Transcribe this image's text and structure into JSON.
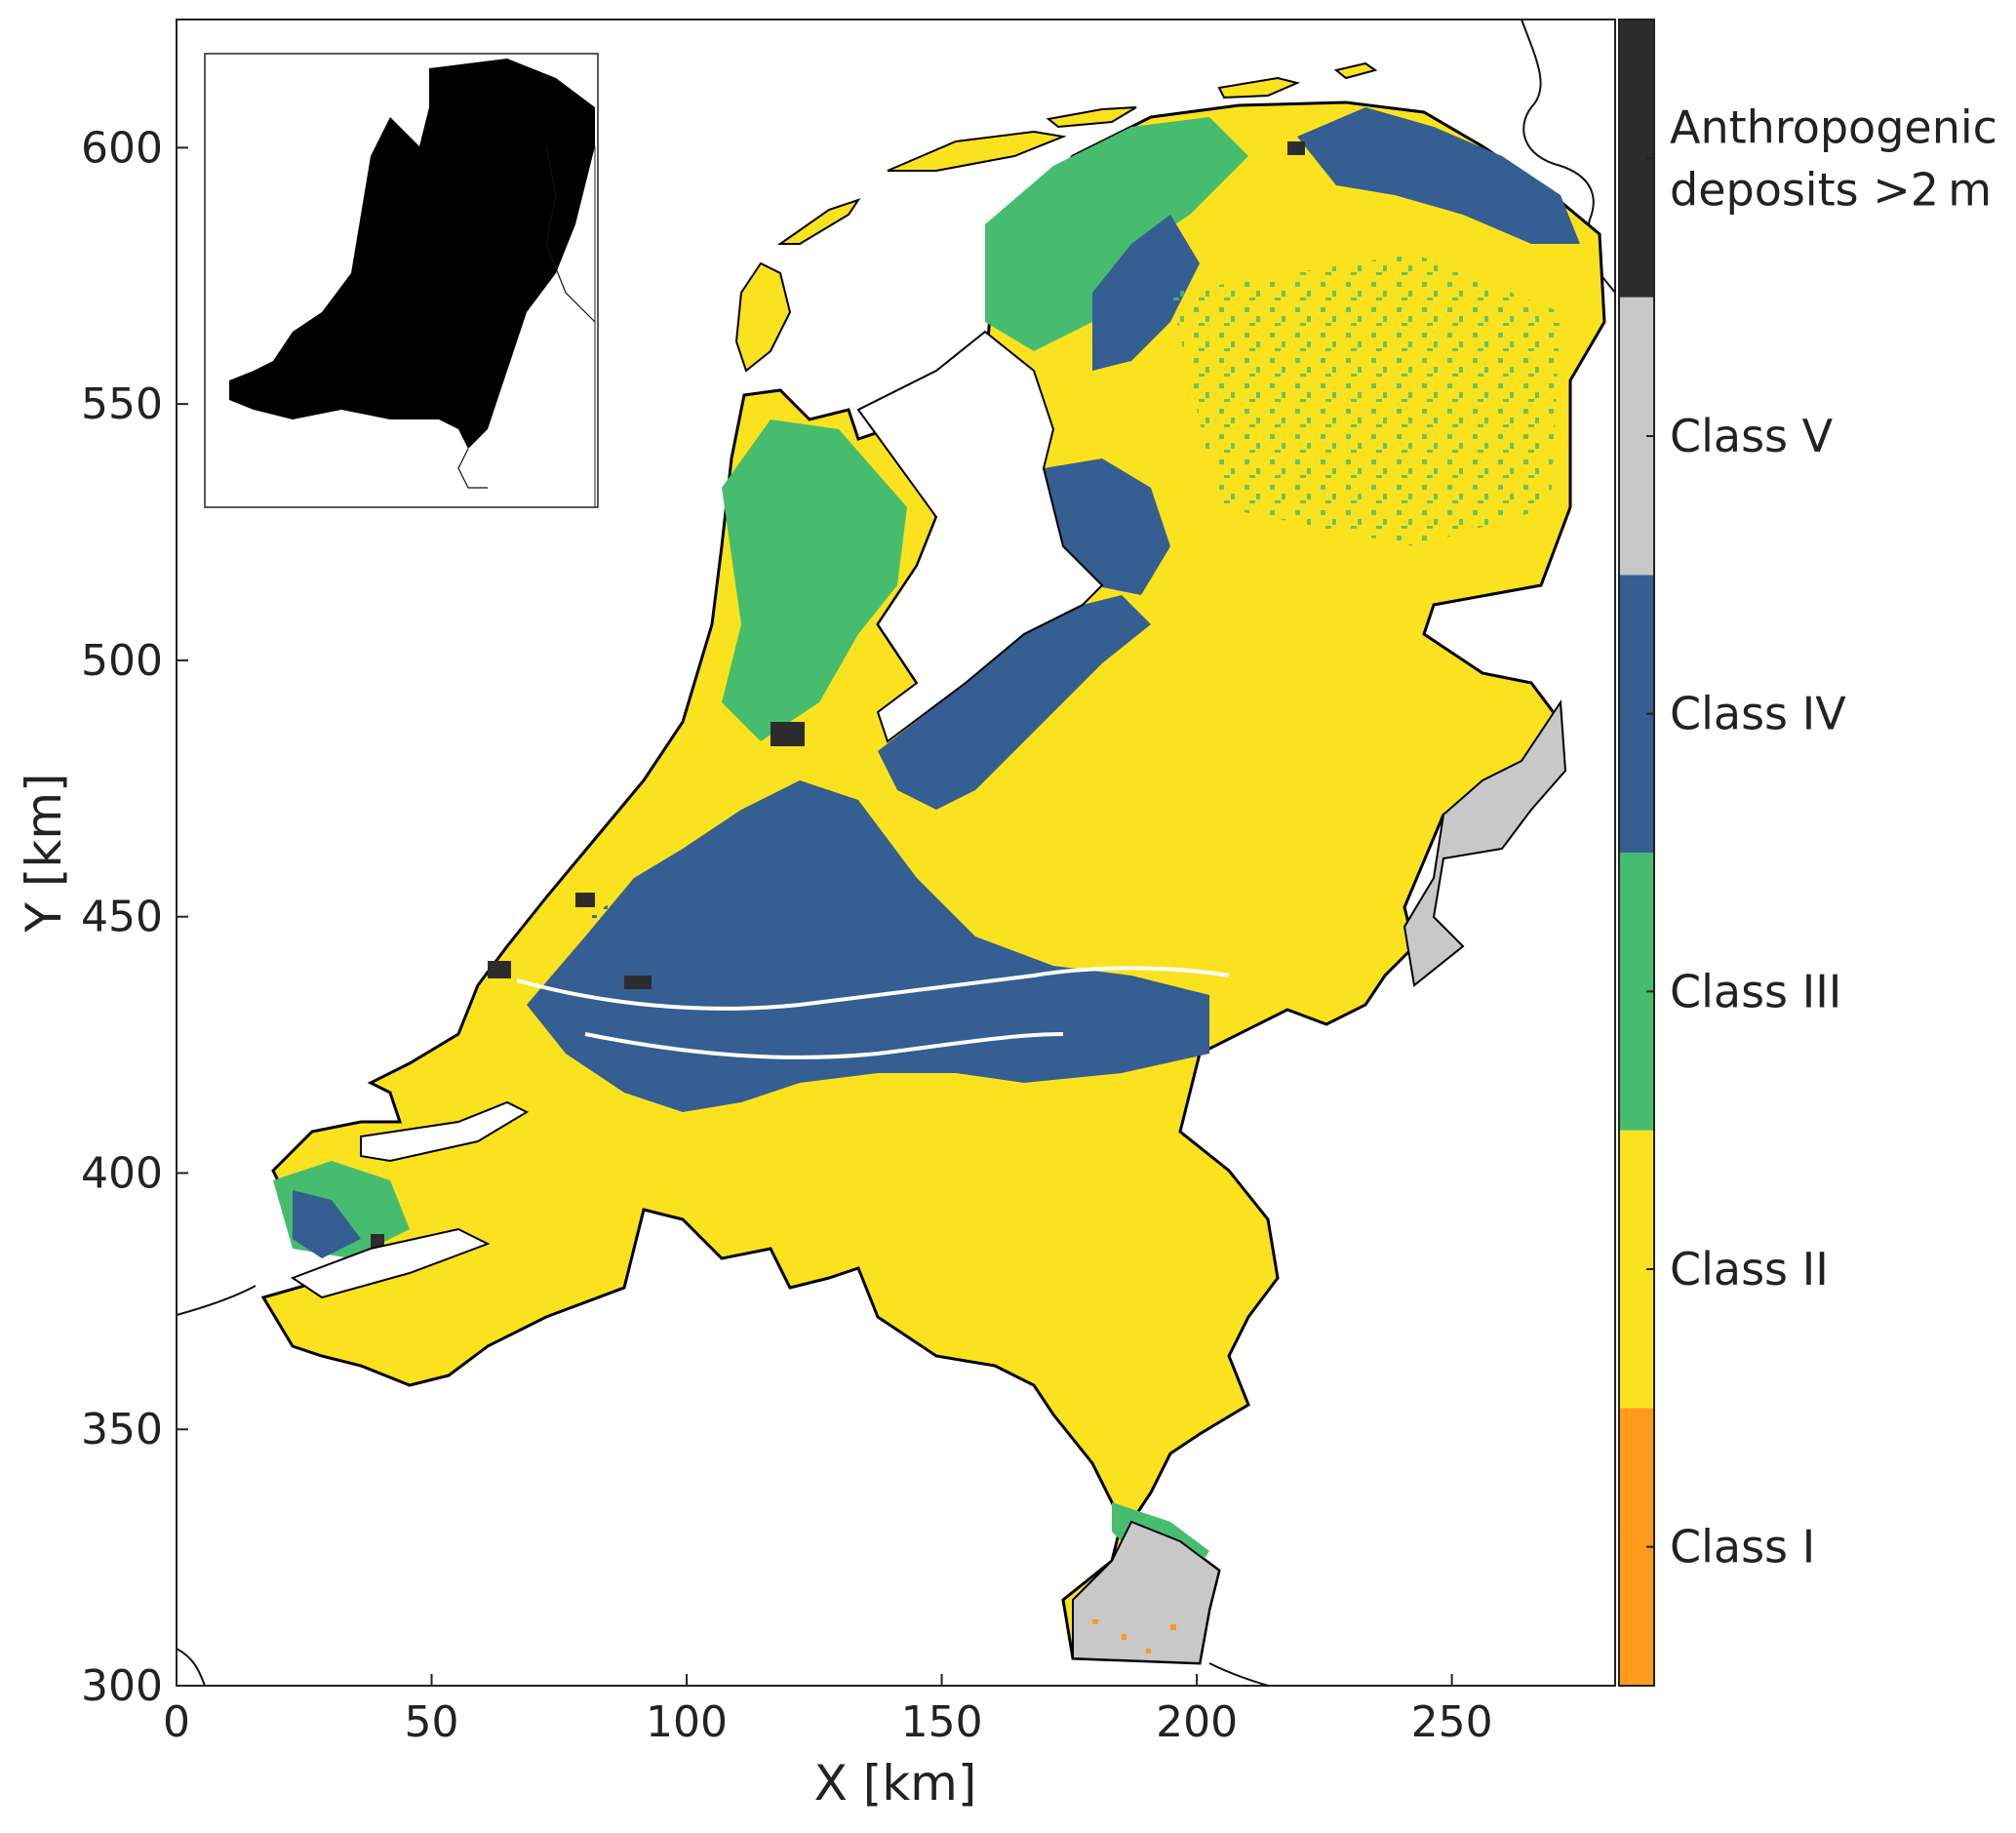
{
  "chart_data": {
    "type": "map",
    "title": "",
    "xlabel": "X [km]",
    "ylabel": "Y [km]",
    "xlim": [
      0,
      282
    ],
    "ylim": [
      300,
      625
    ],
    "xticks": [
      0,
      50,
      100,
      150,
      200,
      250
    ],
    "yticks": [
      300,
      350,
      400,
      450,
      500,
      550,
      600
    ],
    "xtick_labels": [
      "0",
      "50",
      "100",
      "150",
      "200",
      "250"
    ],
    "ytick_labels": [
      "300",
      "350",
      "400",
      "450",
      "500",
      "550",
      "600"
    ],
    "legend": {
      "type": "categorical-colorbar",
      "placement": "right",
      "entries": [
        {
          "label": "Class I",
          "color": "#FF9A1A"
        },
        {
          "label": "Class II",
          "color": "#FBE21F"
        },
        {
          "label": "Class III",
          "color": "#46BD6E"
        },
        {
          "label": "Class IV",
          "color": "#355E92"
        },
        {
          "label": "Class V",
          "color": "#C8C8C8"
        },
        {
          "label_lines": [
            "Anthropogenic",
            "deposits >2 m"
          ],
          "color": "#2C2C2C"
        }
      ]
    },
    "inset": {
      "placement": "top-left",
      "content": "coverage mask of the Netherlands"
    }
  },
  "colors": {
    "class_i": "#FF9A1A",
    "class_ii": "#FBE21F",
    "class_iii": "#46BD6E",
    "class_iv": "#355E92",
    "class_v": "#C8C8C8",
    "anthropogenic": "#2C2C2C",
    "outline": "#000000"
  }
}
